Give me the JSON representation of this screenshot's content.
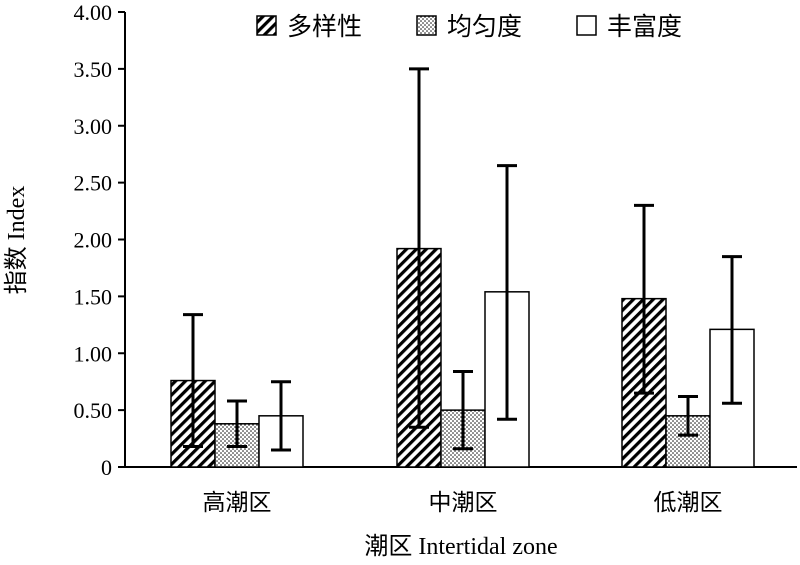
{
  "chart_data": {
    "type": "bar",
    "categories": [
      "高潮区",
      "中潮区",
      "低潮区"
    ],
    "series": [
      {
        "name": "多样性",
        "pattern": "hatch",
        "values": [
          0.76,
          1.92,
          1.48
        ],
        "error_low": [
          0.18,
          0.35,
          0.65
        ],
        "error_high": [
          1.34,
          3.5,
          2.3
        ]
      },
      {
        "name": "均匀度",
        "pattern": "dots",
        "values": [
          0.38,
          0.5,
          0.45
        ],
        "error_low": [
          0.18,
          0.16,
          0.28
        ],
        "error_high": [
          0.58,
          0.84,
          0.62
        ]
      },
      {
        "name": "丰富度",
        "pattern": "blank",
        "values": [
          0.45,
          1.54,
          1.21
        ],
        "error_low": [
          0.15,
          0.42,
          0.56
        ],
        "error_high": [
          0.75,
          2.65,
          1.85
        ]
      }
    ],
    "yticks": [
      "0",
      "0.50",
      "1.00",
      "1.50",
      "2.00",
      "2.50",
      "3.00",
      "3.50",
      "4.00"
    ],
    "ylim": [
      0,
      4.0
    ],
    "xlabel": "潮区 Intertidal zone",
    "ylabel": "指数 Index",
    "legend_position": "top",
    "grid": false
  }
}
